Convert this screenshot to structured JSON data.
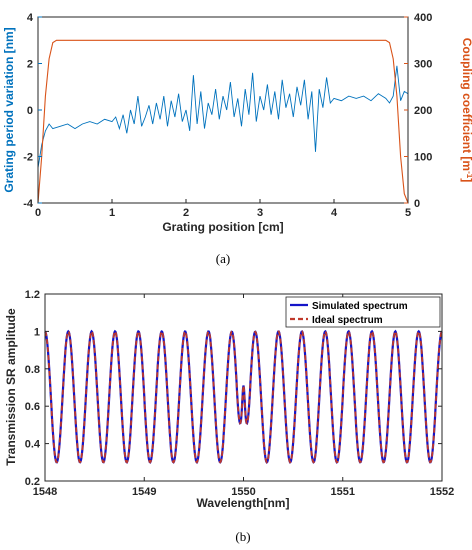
{
  "chart_data": [
    {
      "type": "line",
      "caption": "(a)",
      "xlabel": "Grating position [cm]",
      "ylabel_left": "Grating period variation [nm]",
      "ylabel_right": "Coupling coefficient [m",
      "ylabel_right_sup": "-1",
      "ylabel_right_end": "]",
      "xlim": [
        0,
        5
      ],
      "ylim_left": [
        -4,
        4
      ],
      "ylim_right": [
        0,
        400
      ],
      "xticks": [
        "0",
        "1",
        "2",
        "3",
        "4",
        "5"
      ],
      "yticks_left": [
        "-4",
        "-2",
        "0",
        "2",
        "4"
      ],
      "yticks_right": [
        "0",
        "100",
        "200",
        "300",
        "400"
      ],
      "colors": {
        "left": "#0072BD",
        "right": "#D95319"
      },
      "series": [
        {
          "axis": "left",
          "x": [
            0.0,
            0.05,
            0.1,
            0.15,
            0.2,
            0.3,
            0.4,
            0.5,
            0.6,
            0.7,
            0.8,
            0.9,
            1.0,
            1.05,
            1.1,
            1.15,
            1.2,
            1.25,
            1.3,
            1.35,
            1.4,
            1.45,
            1.5,
            1.55,
            1.6,
            1.65,
            1.7,
            1.75,
            1.8,
            1.85,
            1.9,
            1.95,
            2.0,
            2.05,
            2.1,
            2.15,
            2.2,
            2.25,
            2.3,
            2.35,
            2.4,
            2.45,
            2.5,
            2.55,
            2.6,
            2.65,
            2.7,
            2.75,
            2.8,
            2.85,
            2.9,
            2.95,
            3.0,
            3.05,
            3.1,
            3.15,
            3.2,
            3.25,
            3.3,
            3.35,
            3.4,
            3.45,
            3.5,
            3.55,
            3.6,
            3.65,
            3.7,
            3.75,
            3.8,
            3.85,
            3.9,
            3.95,
            4.0,
            4.1,
            4.2,
            4.3,
            4.4,
            4.5,
            4.6,
            4.7,
            4.75,
            4.8,
            4.85,
            4.9,
            4.95,
            5.0
          ],
          "y": [
            -2.5,
            -1.5,
            -0.9,
            -0.6,
            -0.8,
            -0.7,
            -0.6,
            -0.8,
            -0.6,
            -0.5,
            -0.6,
            -0.4,
            -0.5,
            -0.3,
            -0.8,
            -0.2,
            -1.0,
            0.0,
            -0.6,
            0.6,
            -0.7,
            -0.3,
            0.2,
            -0.6,
            0.3,
            -0.4,
            0.6,
            -0.7,
            0.4,
            -0.3,
            0.7,
            -0.5,
            0.0,
            -0.9,
            1.5,
            -0.6,
            0.8,
            -0.8,
            0.3,
            -0.2,
            0.9,
            -0.4,
            0.6,
            0.0,
            1.2,
            -0.3,
            0.5,
            -0.7,
            0.9,
            -0.2,
            1.6,
            -0.5,
            0.6,
            0.0,
            1.1,
            -0.2,
            0.8,
            -0.4,
            1.3,
            0.1,
            0.7,
            -0.3,
            1.0,
            0.2,
            1.3,
            -0.4,
            0.8,
            -1.8,
            0.9,
            0.1,
            1.4,
            0.3,
            0.5,
            0.4,
            0.6,
            0.5,
            0.6,
            0.4,
            0.7,
            0.5,
            0.3,
            0.6,
            1.9,
            0.4,
            0.8,
            0.7
          ]
        },
        {
          "axis": "right",
          "x": [
            0.0,
            0.05,
            0.1,
            0.15,
            0.2,
            0.25,
            0.3,
            4.7,
            4.75,
            4.8,
            4.85,
            4.9,
            4.95,
            5.0
          ],
          "y": [
            0,
            100,
            230,
            310,
            345,
            350,
            350,
            350,
            345,
            310,
            230,
            100,
            20,
            0
          ]
        }
      ]
    },
    {
      "type": "line",
      "caption": "(b)",
      "xlabel": "Wavelength[nm]",
      "ylabel": "Transmission SR amplitude",
      "xlim": [
        1548,
        1552
      ],
      "ylim": [
        0.2,
        1.2
      ],
      "xticks": [
        "1548",
        "1549",
        "1550",
        "1551",
        "1552"
      ],
      "yticks": [
        "0.2",
        "0.4",
        "0.6",
        "0.8",
        "1",
        "1.2"
      ],
      "period_nm": 0.2353,
      "max": 1.0,
      "min": 0.3,
      "defect_center_nm": 1550,
      "defect_peak": 0.71,
      "defect_min": 0.55,
      "series": [
        {
          "name": "Simulated spectrum",
          "color": "#1414C8"
        },
        {
          "name": "Ideal spectrum",
          "color": "#C0392B"
        }
      ]
    }
  ]
}
